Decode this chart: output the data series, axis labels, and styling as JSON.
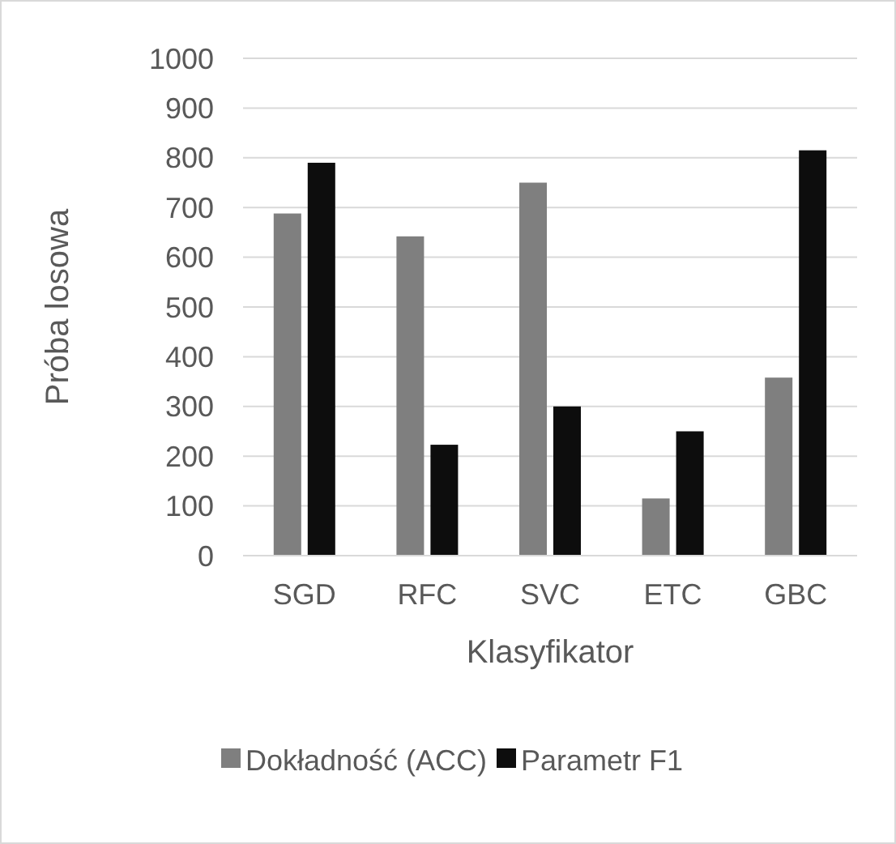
{
  "chart_data": {
    "type": "bar",
    "xlabel": "Klasyfikator",
    "ylabel": "Próba losowa",
    "categories": [
      "SGD",
      "RFC",
      "SVC",
      "ETC",
      "GBC"
    ],
    "series": [
      {
        "name": "Dokładność (ACC)",
        "color": "#7f7f7f",
        "values": [
          688,
          642,
          750,
          115,
          358
        ]
      },
      {
        "name": "Parametr F1",
        "color": "#0d0d0d",
        "values": [
          790,
          223,
          300,
          250,
          815
        ]
      }
    ],
    "ylim": [
      0,
      1000
    ],
    "yticks": [
      0,
      100,
      200,
      300,
      400,
      500,
      600,
      700,
      800,
      900,
      1000
    ],
    "grid": "y",
    "legend": "bottom"
  }
}
